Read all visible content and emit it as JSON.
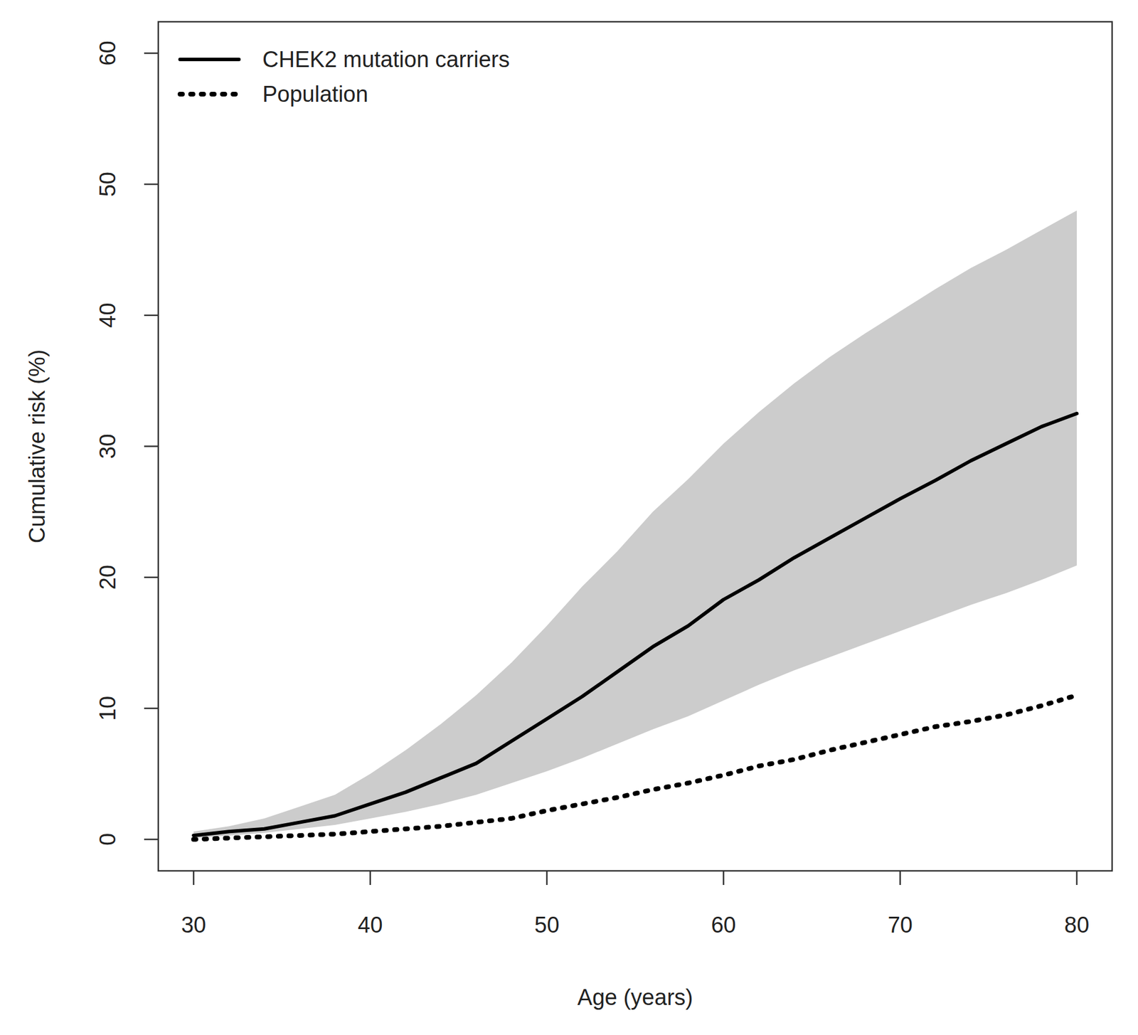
{
  "chart_data": {
    "type": "line",
    "x_label": "Age (years)",
    "y_label": "Cumulative risk (%)",
    "x": [
      30,
      32,
      34,
      36,
      38,
      40,
      42,
      44,
      46,
      48,
      50,
      52,
      54,
      56,
      58,
      60,
      62,
      64,
      66,
      68,
      70,
      72,
      74,
      76,
      78,
      80
    ],
    "series": [
      {
        "name": "CHEK2 mutation carriers",
        "color": "#000000",
        "line_style": "solid",
        "values": [
          0.3,
          0.6,
          0.8,
          1.3,
          1.8,
          2.7,
          3.6,
          4.7,
          5.8,
          7.5,
          9.2,
          10.9,
          12.8,
          14.7,
          16.3,
          18.3,
          19.8,
          21.5,
          23.0,
          24.5,
          26.0,
          27.4,
          28.9,
          30.2,
          31.5,
          32.5
        ],
        "lower": [
          0.1,
          0.3,
          0.5,
          0.8,
          1.1,
          1.6,
          2.1,
          2.7,
          3.4,
          4.3,
          5.2,
          6.2,
          7.3,
          8.4,
          9.4,
          10.6,
          11.8,
          12.9,
          13.9,
          14.9,
          15.9,
          16.9,
          17.9,
          18.8,
          19.8,
          20.9
        ],
        "upper": [
          0.6,
          1.0,
          1.6,
          2.5,
          3.4,
          5.0,
          6.8,
          8.8,
          11.0,
          13.5,
          16.3,
          19.3,
          22.0,
          25.0,
          27.5,
          30.2,
          32.6,
          34.8,
          36.8,
          38.6,
          40.3,
          42.0,
          43.6,
          45.0,
          46.5,
          48.0
        ]
      },
      {
        "name": "Population",
        "color": "#000000",
        "line_style": "dotted",
        "values": [
          0.0,
          0.1,
          0.2,
          0.3,
          0.4,
          0.6,
          0.8,
          1.0,
          1.3,
          1.6,
          2.2,
          2.7,
          3.2,
          3.8,
          4.3,
          4.9,
          5.6,
          6.1,
          6.8,
          7.4,
          8.0,
          8.6,
          9.0,
          9.5,
          10.2,
          11.0
        ]
      }
    ],
    "xlim": [
      28,
      82
    ],
    "ylim": [
      -2.4,
      62.4
    ],
    "xticks": [
      30,
      40,
      50,
      60,
      70,
      80
    ],
    "yticks": [
      0,
      10,
      20,
      30,
      40,
      50,
      60
    ],
    "grid": false,
    "legend": "top-left"
  }
}
